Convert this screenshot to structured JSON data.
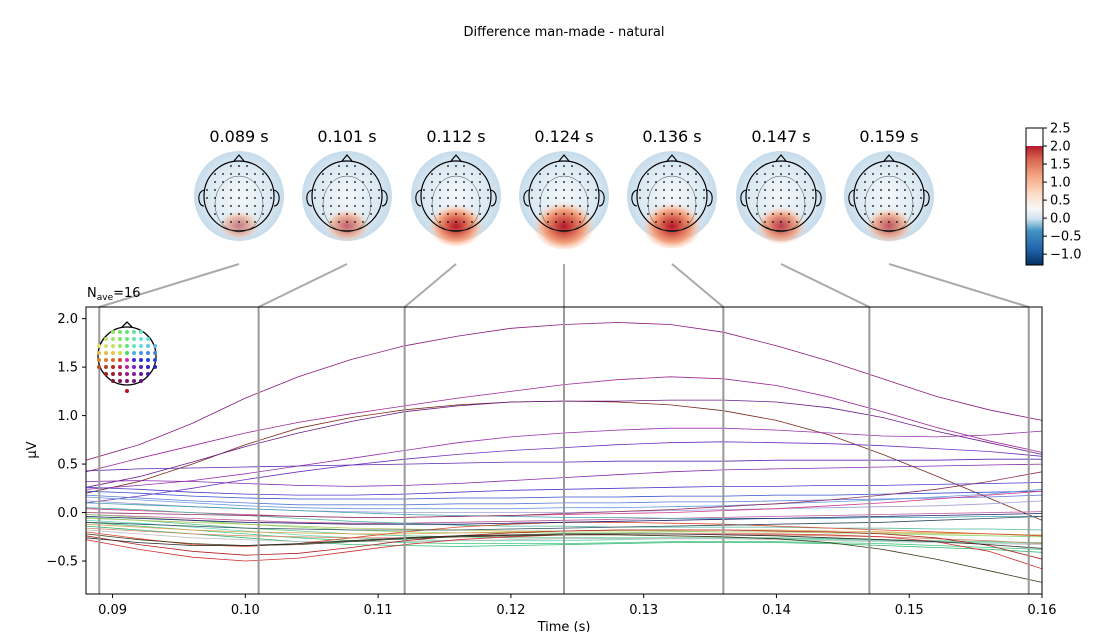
{
  "figure": {
    "suptitle": "Difference man-made - natural"
  },
  "chart_data": [
    {
      "type": "line",
      "subtype": "evoked-butterfly",
      "title": "",
      "nave_label": "N",
      "nave_sub": "ave",
      "nave_value": "=16",
      "xlabel": "Time (s)",
      "ylabel": "µV",
      "xlim": [
        0.088,
        0.16
      ],
      "ylim": [
        -0.84,
        2.12
      ],
      "xticks": [
        0.09,
        0.1,
        0.11,
        0.12,
        0.13,
        0.14,
        0.15,
        0.16
      ],
      "xtick_labels": [
        "0.09",
        "0.10",
        "0.11",
        "0.12",
        "0.13",
        "0.14",
        "0.15",
        "0.16"
      ],
      "yticks": [
        -0.5,
        0.0,
        0.5,
        1.0,
        1.5,
        2.0
      ],
      "ytick_labels": [
        "−0.5",
        "0.0",
        "0.5",
        "1.0",
        "1.5",
        "2.0"
      ],
      "grid": false,
      "topomap_times": [
        0.089,
        0.101,
        0.112,
        0.124,
        0.136,
        0.147,
        0.159
      ],
      "x_samples": [
        0.088,
        0.092,
        0.096,
        0.1,
        0.104,
        0.108,
        0.112,
        0.116,
        0.12,
        0.124,
        0.128,
        0.132,
        0.136,
        0.14,
        0.144,
        0.148,
        0.152,
        0.156,
        0.16
      ],
      "series": [
        {
          "color": "#8b1a7c",
          "values": [
            0.54,
            0.7,
            0.92,
            1.18,
            1.4,
            1.58,
            1.72,
            1.82,
            1.9,
            1.94,
            1.96,
            1.94,
            1.86,
            1.72,
            1.56,
            1.38,
            1.2,
            1.06,
            0.95
          ]
        },
        {
          "color": "#a0289a",
          "values": [
            0.42,
            0.56,
            0.69,
            0.82,
            0.93,
            1.02,
            1.1,
            1.18,
            1.25,
            1.32,
            1.37,
            1.4,
            1.38,
            1.31,
            1.19,
            1.04,
            0.88,
            0.74,
            0.62
          ]
        },
        {
          "color": "#7a2a1a",
          "values": [
            0.2,
            0.32,
            0.5,
            0.7,
            0.87,
            0.98,
            1.06,
            1.11,
            1.14,
            1.15,
            1.14,
            1.11,
            1.05,
            0.95,
            0.8,
            0.6,
            0.38,
            0.15,
            -0.08
          ]
        },
        {
          "color": "#6a1a8a",
          "values": [
            0.26,
            0.37,
            0.52,
            0.68,
            0.82,
            0.94,
            1.04,
            1.1,
            1.14,
            1.15,
            1.15,
            1.16,
            1.16,
            1.14,
            1.08,
            0.98,
            0.84,
            0.72,
            0.6
          ]
        },
        {
          "color": "#9a30b0",
          "values": [
            0.24,
            0.28,
            0.33,
            0.4,
            0.48,
            0.56,
            0.64,
            0.72,
            0.78,
            0.82,
            0.85,
            0.87,
            0.87,
            0.85,
            0.82,
            0.79,
            0.78,
            0.8,
            0.84
          ]
        },
        {
          "color": "#7030c0",
          "values": [
            0.1,
            0.17,
            0.25,
            0.34,
            0.42,
            0.49,
            0.55,
            0.6,
            0.64,
            0.67,
            0.7,
            0.72,
            0.73,
            0.72,
            0.71,
            0.69,
            0.66,
            0.63,
            0.58
          ]
        },
        {
          "color": "#5a2ab0",
          "values": [
            0.43,
            0.45,
            0.46,
            0.47,
            0.48,
            0.49,
            0.5,
            0.51,
            0.52,
            0.52,
            0.53,
            0.53,
            0.53,
            0.54,
            0.54,
            0.54,
            0.54,
            0.55,
            0.55
          ]
        },
        {
          "color": "#8a2ab0",
          "values": [
            0.32,
            0.33,
            0.32,
            0.3,
            0.28,
            0.27,
            0.28,
            0.3,
            0.33,
            0.36,
            0.39,
            0.42,
            0.44,
            0.45,
            0.46,
            0.47,
            0.48,
            0.49,
            0.5
          ]
        },
        {
          "color": "#4a3ac8",
          "values": [
            0.26,
            0.24,
            0.21,
            0.19,
            0.18,
            0.18,
            0.19,
            0.21,
            0.23,
            0.24,
            0.25,
            0.26,
            0.27,
            0.27,
            0.28,
            0.28,
            0.29,
            0.3,
            0.31
          ]
        },
        {
          "color": "#3a50d0",
          "values": [
            0.22,
            0.2,
            0.17,
            0.15,
            0.14,
            0.14,
            0.14,
            0.15,
            0.15,
            0.16,
            0.16,
            0.17,
            0.17,
            0.18,
            0.18,
            0.19,
            0.2,
            0.21,
            0.22
          ]
        },
        {
          "color": "#5a7ad8",
          "values": [
            0.18,
            0.15,
            0.12,
            0.1,
            0.08,
            0.08,
            0.08,
            0.09,
            0.09,
            0.1,
            0.1,
            0.11,
            0.11,
            0.12,
            0.13,
            0.14,
            0.15,
            0.16,
            0.18
          ]
        },
        {
          "color": "#6a9ae0",
          "values": [
            0.16,
            0.13,
            0.1,
            0.07,
            0.05,
            0.04,
            0.04,
            0.04,
            0.04,
            0.05,
            0.05,
            0.06,
            0.07,
            0.09,
            0.11,
            0.13,
            0.16,
            0.19,
            0.24
          ]
        },
        {
          "color": "#a0a0d8",
          "values": [
            0.12,
            0.09,
            0.06,
            0.04,
            0.02,
            0.01,
            0.0,
            0.0,
            0.0,
            0.0,
            0.01,
            0.02,
            0.03,
            0.04,
            0.05,
            0.06,
            0.07,
            0.09,
            0.12
          ]
        },
        {
          "color": "#d03a8a",
          "values": [
            0.04,
            0.02,
            0.0,
            -0.02,
            -0.04,
            -0.05,
            -0.05,
            -0.04,
            -0.03,
            -0.02,
            -0.01,
            0.0,
            0.02,
            0.04,
            0.07,
            0.1,
            0.14,
            0.18,
            0.22
          ]
        },
        {
          "color": "#c05a9a",
          "values": [
            -0.02,
            -0.04,
            -0.06,
            -0.08,
            -0.1,
            -0.11,
            -0.11,
            -0.1,
            -0.09,
            -0.08,
            -0.07,
            -0.06,
            -0.05,
            -0.04,
            -0.03,
            -0.02,
            -0.01,
            0.0,
            0.01
          ]
        },
        {
          "color": "#40a0b0",
          "values": [
            0.1,
            0.08,
            0.06,
            0.04,
            0.02,
            0.0,
            -0.02,
            -0.03,
            -0.04,
            -0.05,
            -0.05,
            -0.06,
            -0.06,
            -0.06,
            -0.06,
            -0.05,
            -0.05,
            -0.04,
            -0.04
          ]
        },
        {
          "color": "#50b8a0",
          "values": [
            0.05,
            0.03,
            0.0,
            -0.03,
            -0.06,
            -0.09,
            -0.11,
            -0.13,
            -0.14,
            -0.14,
            -0.15,
            -0.15,
            -0.15,
            -0.15,
            -0.16,
            -0.16,
            -0.17,
            -0.17,
            -0.18
          ]
        },
        {
          "color": "#60c890",
          "values": [
            -0.05,
            -0.08,
            -0.12,
            -0.16,
            -0.19,
            -0.22,
            -0.24,
            -0.25,
            -0.26,
            -0.26,
            -0.26,
            -0.26,
            -0.26,
            -0.26,
            -0.27,
            -0.28,
            -0.29,
            -0.3,
            -0.31
          ]
        },
        {
          "color": "#40c880",
          "values": [
            -0.1,
            -0.14,
            -0.18,
            -0.22,
            -0.26,
            -0.29,
            -0.31,
            -0.32,
            -0.32,
            -0.32,
            -0.31,
            -0.3,
            -0.3,
            -0.3,
            -0.31,
            -0.32,
            -0.34,
            -0.36,
            -0.38
          ]
        },
        {
          "color": "#30b870",
          "values": [
            -0.14,
            -0.18,
            -0.22,
            -0.26,
            -0.3,
            -0.33,
            -0.34,
            -0.35,
            -0.34,
            -0.33,
            -0.32,
            -0.31,
            -0.31,
            -0.31,
            -0.32,
            -0.34,
            -0.36,
            -0.38,
            -0.41
          ]
        },
        {
          "color": "#70d8b8",
          "values": [
            -0.08,
            -0.11,
            -0.15,
            -0.19,
            -0.23,
            -0.26,
            -0.28,
            -0.29,
            -0.29,
            -0.29,
            -0.28,
            -0.27,
            -0.27,
            -0.27,
            -0.28,
            -0.29,
            -0.3,
            -0.31,
            -0.32
          ]
        },
        {
          "color": "#90d870",
          "values": [
            -0.02,
            -0.05,
            -0.08,
            -0.12,
            -0.15,
            -0.18,
            -0.2,
            -0.21,
            -0.21,
            -0.21,
            -0.21,
            -0.2,
            -0.2,
            -0.2,
            -0.21,
            -0.22,
            -0.23,
            -0.24,
            -0.25
          ]
        },
        {
          "color": "#b0c860",
          "values": [
            -0.06,
            -0.08,
            -0.1,
            -0.12,
            -0.14,
            -0.16,
            -0.17,
            -0.18,
            -0.19,
            -0.19,
            -0.19,
            -0.19,
            -0.2,
            -0.2,
            -0.21,
            -0.21,
            -0.22,
            -0.22,
            -0.23
          ]
        },
        {
          "color": "#e0a050",
          "values": [
            -0.12,
            -0.15,
            -0.18,
            -0.2,
            -0.21,
            -0.22,
            -0.22,
            -0.21,
            -0.2,
            -0.19,
            -0.18,
            -0.18,
            -0.18,
            -0.18,
            -0.19,
            -0.2,
            -0.21,
            -0.22,
            -0.24
          ]
        },
        {
          "color": "#d08a6a",
          "values": [
            -0.16,
            -0.19,
            -0.22,
            -0.24,
            -0.25,
            -0.26,
            -0.26,
            -0.25,
            -0.24,
            -0.23,
            -0.22,
            -0.22,
            -0.22,
            -0.23,
            -0.24,
            -0.25,
            -0.27,
            -0.29,
            -0.32
          ]
        },
        {
          "color": "#c0c0c0",
          "values": [
            -0.18,
            -0.22,
            -0.26,
            -0.28,
            -0.3,
            -0.3,
            -0.3,
            -0.29,
            -0.28,
            -0.27,
            -0.27,
            -0.27,
            -0.27,
            -0.28,
            -0.29,
            -0.3,
            -0.31,
            -0.32,
            -0.33
          ]
        },
        {
          "color": "#d03030",
          "values": [
            -0.28,
            -0.38,
            -0.46,
            -0.5,
            -0.47,
            -0.4,
            -0.33,
            -0.28,
            -0.25,
            -0.23,
            -0.22,
            -0.22,
            -0.22,
            -0.22,
            -0.23,
            -0.25,
            -0.3,
            -0.4,
            -0.58
          ]
        },
        {
          "color": "#b02020",
          "values": [
            -0.24,
            -0.33,
            -0.4,
            -0.44,
            -0.42,
            -0.36,
            -0.29,
            -0.24,
            -0.21,
            -0.19,
            -0.18,
            -0.18,
            -0.18,
            -0.19,
            -0.2,
            -0.22,
            -0.26,
            -0.34,
            -0.48
          ]
        },
        {
          "color": "#e04a2a",
          "values": [
            -0.2,
            -0.27,
            -0.33,
            -0.35,
            -0.32,
            -0.26,
            -0.2,
            -0.15,
            -0.12,
            -0.1,
            -0.1,
            -0.11,
            -0.12,
            -0.14,
            -0.16,
            -0.18,
            -0.2,
            -0.22,
            -0.24
          ]
        },
        {
          "color": "#3a3a1a",
          "values": [
            -0.22,
            -0.28,
            -0.32,
            -0.34,
            -0.33,
            -0.3,
            -0.27,
            -0.25,
            -0.24,
            -0.23,
            -0.23,
            -0.24,
            -0.25,
            -0.27,
            -0.31,
            -0.38,
            -0.48,
            -0.6,
            -0.72
          ]
        },
        {
          "color": "#2a2a2a",
          "values": [
            -0.26,
            -0.31,
            -0.34,
            -0.34,
            -0.32,
            -0.29,
            -0.26,
            -0.24,
            -0.23,
            -0.22,
            -0.22,
            -0.22,
            -0.23,
            -0.24,
            -0.26,
            -0.28,
            -0.3,
            -0.33,
            -0.37
          ]
        },
        {
          "color": "#202070",
          "values": [
            -0.04,
            -0.06,
            -0.08,
            -0.1,
            -0.11,
            -0.12,
            -0.12,
            -0.12,
            -0.11,
            -0.1,
            -0.09,
            -0.08,
            -0.07,
            -0.06,
            -0.05,
            -0.04,
            -0.03,
            -0.02,
            -0.01
          ]
        },
        {
          "color": "#305060",
          "values": [
            -0.1,
            -0.12,
            -0.14,
            -0.16,
            -0.17,
            -0.18,
            -0.18,
            -0.18,
            -0.17,
            -0.16,
            -0.15,
            -0.14,
            -0.13,
            -0.12,
            -0.11,
            -0.1,
            -0.08,
            -0.06,
            -0.04
          ]
        },
        {
          "color": "#903060",
          "values": [
            0.0,
            -0.01,
            -0.02,
            -0.03,
            -0.04,
            -0.05,
            -0.05,
            -0.04,
            -0.03,
            -0.01,
            0.01,
            0.03,
            0.06,
            0.09,
            0.13,
            0.18,
            0.24,
            0.32,
            0.42
          ]
        }
      ]
    },
    {
      "type": "heatmap",
      "subtype": "topomap-series",
      "titles": [
        "0.089 s",
        "0.101 s",
        "0.112 s",
        "0.124 s",
        "0.136 s",
        "0.147 s",
        "0.159 s"
      ],
      "peak_values": [
        0.45,
        0.75,
        1.6,
        2.1,
        1.95,
        1.2,
        0.9
      ],
      "colormap": "RdBu_r",
      "colorbar": {
        "tick_labels": [
          "2.5",
          "2.0",
          "1.5",
          "1.0",
          "0.5",
          "0.0",
          "−0.5",
          "−1.0"
        ],
        "ticks": [
          2.5,
          2.0,
          1.5,
          1.0,
          0.5,
          0.0,
          -0.5,
          -1.0
        ],
        "range": [
          -1.3,
          2.5
        ]
      }
    }
  ]
}
